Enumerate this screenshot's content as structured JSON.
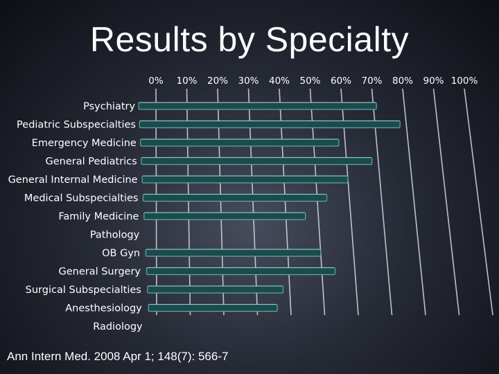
{
  "slide": {
    "title": "Results by Specialty",
    "citation": "Ann Intern Med. 2008 Apr 1; 148(7): 566-7"
  },
  "chart_data": {
    "type": "bar",
    "orientation": "horizontal",
    "title": "Results by Specialty",
    "xlabel": "",
    "ylabel": "",
    "xlim": [
      0,
      100
    ],
    "x_ticks": [
      "0%",
      "10%",
      "20%",
      "30%",
      "40%",
      "50%",
      "60%",
      "70%",
      "80%",
      "90%",
      "100%"
    ],
    "grid": true,
    "categories": [
      "Psychiatry",
      "Pediatric Subspecialties",
      "Emergency Medicine",
      "General Pediatrics",
      "General Internal Medicine",
      "Medical Subspecialties",
      "Family Medicine",
      "Pathology",
      "OB Gyn",
      "General Surgery",
      "Surgical Subspecialties",
      "Anesthesiology",
      "Radiology"
    ],
    "values": [
      71,
      78,
      58,
      68,
      60,
      53,
      46,
      0,
      50,
      54,
      38,
      36,
      0
    ],
    "colors": {
      "bar": "#1c4a4d",
      "bar_edge": "#5ea7a5",
      "grid": "#d8dde2",
      "text": "#ffffff"
    }
  }
}
